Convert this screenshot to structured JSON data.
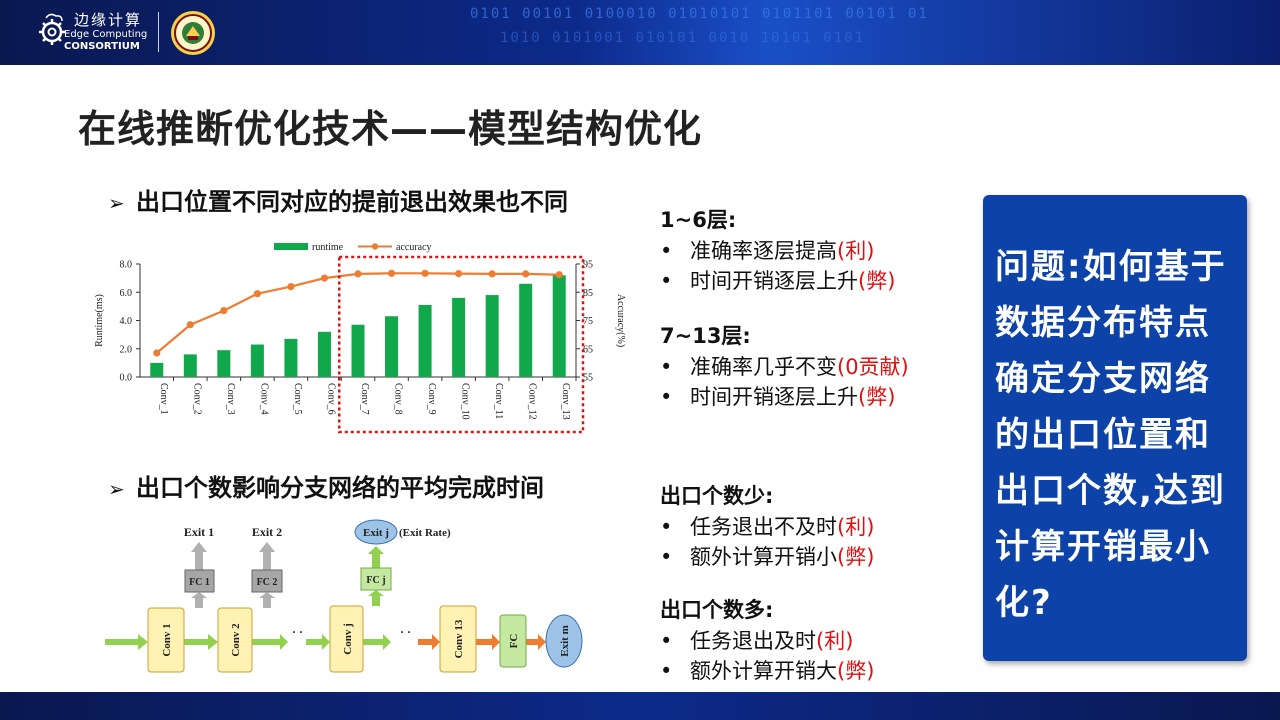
{
  "header": {
    "logo_cn": "边缘计算",
    "logo_en_line1": "Edge Computing",
    "logo_en_line2": "CONSORTIUM",
    "seal_text": "北京大学"
  },
  "title": "在线推断优化技术——模型结构优化",
  "section1": {
    "arrow": "➢",
    "text": "出口位置不同对应的提前退出效果也不同"
  },
  "section2": {
    "arrow": "➢",
    "text": "出口个数影响分支网络的平均完成时间"
  },
  "chart_data": {
    "type": "bar",
    "categories": [
      "Conv_1",
      "Conv_2",
      "Conv_3",
      "Conv_4",
      "Conv_5",
      "Conv_6",
      "Conv_7",
      "Conv_8",
      "Conv_9",
      "Conv_10",
      "Conv_11",
      "Conv_12",
      "Conv_13"
    ],
    "series": [
      {
        "name": "runtime",
        "type": "bar",
        "axis": "left",
        "color": "#10a84a",
        "values": [
          1.0,
          1.6,
          1.9,
          2.3,
          2.7,
          3.2,
          3.7,
          4.3,
          5.1,
          5.6,
          5.8,
          6.6,
          7.2
        ]
      },
      {
        "name": "accuracy",
        "type": "line",
        "axis": "right",
        "color": "#ed7d31",
        "values": [
          63.5,
          73.5,
          78.5,
          84.5,
          87,
          90,
          91.5,
          91.7,
          91.7,
          91.6,
          91.5,
          91.5,
          91.2
        ]
      }
    ],
    "ylabel": "Runtime(ms)",
    "y2label": "Accuracy(%)",
    "ylim": [
      0,
      8
    ],
    "y2lim": [
      55,
      95
    ],
    "yticks": [
      "0.0",
      "2.0",
      "4.0",
      "6.0",
      "8.0"
    ],
    "y2ticks": [
      "55",
      "65",
      "75",
      "85",
      "95"
    ],
    "legend_position": "top",
    "highlight": {
      "from": "Conv_7",
      "to": "Conv_13",
      "color": "#e01010",
      "style": "dotted"
    }
  },
  "diagram": {
    "exit1": "Exit 1",
    "exit2": "Exit 2",
    "exitj": "Exit j",
    "exit_rate": "(Exit Rate)",
    "fc1": "FC 1",
    "fc2": "FC 2",
    "fcj": "FC j",
    "conv1": "Conv 1",
    "conv2": "Conv 2",
    "convj": "Conv j",
    "conv13": "Conv 13",
    "fc": "FC",
    "exitm": "Exit m",
    "dots": "· ·",
    "colors": {
      "green": "#92d050",
      "gray": "#a6a6a6",
      "orange": "#ed7d31",
      "yellow": "#fff2b3",
      "blue": "#9dc3e6"
    }
  },
  "right_groups": [
    {
      "heading": "1~6层:",
      "items": [
        {
          "dot": "•",
          "text": "准确率逐层提高",
          "note": "(利)"
        },
        {
          "dot": "•",
          "text": "时间开销逐层上升",
          "note": "(弊)"
        }
      ]
    },
    {
      "heading": "7~13层:",
      "items": [
        {
          "dot": "•",
          "text": "准确率几乎不变",
          "note": "(0贡献)"
        },
        {
          "dot": "•",
          "text": "时间开销逐层上升",
          "note": "(弊)"
        }
      ]
    },
    {
      "heading": "出口个数少:",
      "items": [
        {
          "dot": "•",
          "text": "任务退出不及时",
          "note": "(利)"
        },
        {
          "dot": "•",
          "text": "额外计算开销小",
          "note": "(弊)"
        }
      ]
    },
    {
      "heading": "出口个数多:",
      "items": [
        {
          "dot": "•",
          "text": "任务退出及时",
          "note": "(利)"
        },
        {
          "dot": "•",
          "text": "额外计算开销大",
          "note": "(弊)"
        }
      ]
    }
  ],
  "question_box": {
    "text": "问题:如何基于数据分布特点确定分支网络的出口位置和出口个数,达到计算开销最小化?"
  }
}
